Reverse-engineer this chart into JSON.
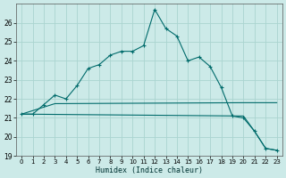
{
  "xlabel": "Humidex (Indice chaleur)",
  "background_color": "#cceae8",
  "grid_color": "#aad4d0",
  "line_color": "#006b6b",
  "xlim": [
    -0.5,
    23.5
  ],
  "ylim": [
    19,
    27
  ],
  "x_ticks": [
    0,
    1,
    2,
    3,
    4,
    5,
    6,
    7,
    8,
    9,
    10,
    11,
    12,
    13,
    14,
    15,
    16,
    17,
    18,
    19,
    20,
    21,
    22,
    23
  ],
  "y_ticks": [
    19,
    20,
    21,
    22,
    23,
    24,
    25,
    26
  ],
  "humidex_x": [
    0,
    1,
    2,
    3,
    4,
    5,
    6,
    7,
    8,
    9,
    10,
    11,
    12,
    13,
    14,
    15,
    16,
    17,
    18,
    19,
    20,
    21,
    22,
    23
  ],
  "humidex_y": [
    21.2,
    21.2,
    21.7,
    22.2,
    22.0,
    22.7,
    23.6,
    23.8,
    24.3,
    24.5,
    24.5,
    24.8,
    26.7,
    25.7,
    25.3,
    24.0,
    24.2,
    23.7,
    22.6,
    21.1,
    21.0,
    20.3,
    19.4,
    19.3
  ],
  "line2_x": [
    0,
    3,
    20,
    23
  ],
  "line2_y": [
    21.2,
    21.75,
    21.8,
    21.8
  ],
  "line3_x": [
    0,
    20,
    21,
    22,
    23
  ],
  "line3_y": [
    21.2,
    21.1,
    20.3,
    19.4,
    19.3
  ]
}
